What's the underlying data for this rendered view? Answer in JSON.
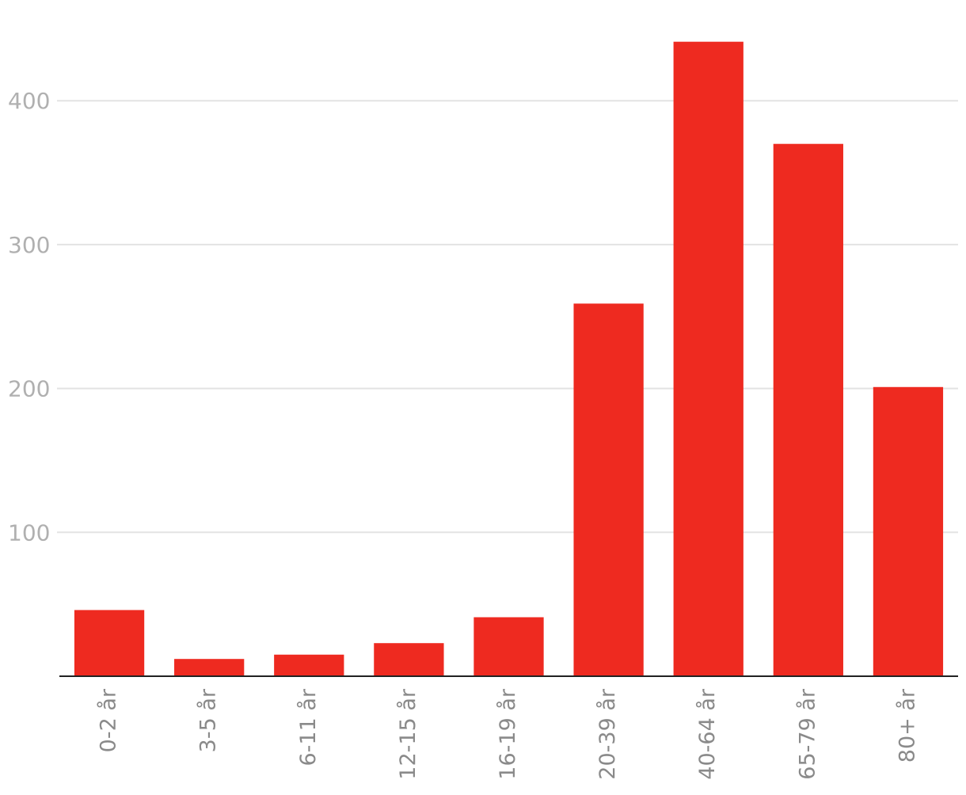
{
  "chart_data": {
    "type": "bar",
    "categories": [
      "0-2 år",
      "3-5 år",
      "6-11 år",
      "12-15 år",
      "16-19 år",
      "20-39 år",
      "40-64 år",
      "65-79 år",
      "80+ år"
    ],
    "values": [
      46,
      12,
      15,
      23,
      41,
      259,
      441,
      370,
      201
    ],
    "color": "#ee2a20",
    "ylim": [
      0,
      470
    ],
    "yticks": [
      100,
      200,
      300,
      400
    ],
    "grid": true
  }
}
